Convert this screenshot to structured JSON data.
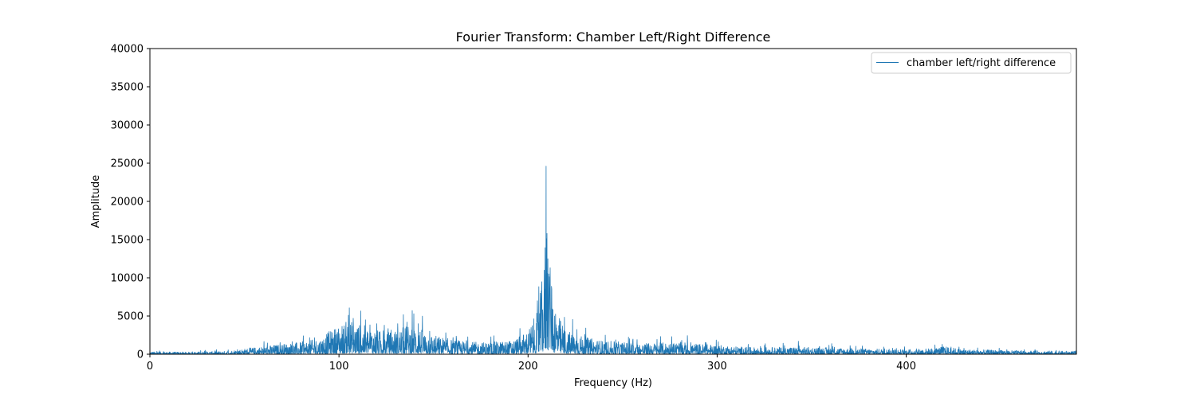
{
  "chart_data": {
    "type": "line",
    "title": "Fourier Transform: Chamber Left/Right Difference",
    "xlabel": "Frequency (Hz)",
    "ylabel": "Amplitude",
    "xlim": [
      0,
      490
    ],
    "ylim": [
      0,
      40000
    ],
    "x_ticks": [
      0,
      100,
      200,
      300,
      400
    ],
    "y_ticks": [
      0,
      5000,
      10000,
      15000,
      20000,
      25000,
      30000,
      35000,
      40000
    ],
    "grid": false,
    "legend_position": "top-right",
    "color": "#1f77b4",
    "series": [
      {
        "name": "chamber left/right difference",
        "envelope": [
          {
            "x": 0,
            "y": 200
          },
          {
            "x": 20,
            "y": 180
          },
          {
            "x": 40,
            "y": 250
          },
          {
            "x": 50,
            "y": 450
          },
          {
            "x": 60,
            "y": 650
          },
          {
            "x": 70,
            "y": 850
          },
          {
            "x": 80,
            "y": 1000
          },
          {
            "x": 90,
            "y": 1300
          },
          {
            "x": 95,
            "y": 1900
          },
          {
            "x": 100,
            "y": 2400
          },
          {
            "x": 105,
            "y": 2800
          },
          {
            "x": 110,
            "y": 2500
          },
          {
            "x": 115,
            "y": 2300
          },
          {
            "x": 120,
            "y": 2000
          },
          {
            "x": 125,
            "y": 1800
          },
          {
            "x": 130,
            "y": 2000
          },
          {
            "x": 135,
            "y": 2300
          },
          {
            "x": 140,
            "y": 2500
          },
          {
            "x": 145,
            "y": 1900
          },
          {
            "x": 150,
            "y": 1600
          },
          {
            "x": 160,
            "y": 1200
          },
          {
            "x": 170,
            "y": 1000
          },
          {
            "x": 180,
            "y": 1000
          },
          {
            "x": 190,
            "y": 1100
          },
          {
            "x": 195,
            "y": 1400
          },
          {
            "x": 200,
            "y": 2000
          },
          {
            "x": 205,
            "y": 3500
          },
          {
            "x": 207,
            "y": 5500
          },
          {
            "x": 209,
            "y": 10000
          },
          {
            "x": 210,
            "y": 13000
          },
          {
            "x": 211,
            "y": 8000
          },
          {
            "x": 213,
            "y": 5500
          },
          {
            "x": 216,
            "y": 3200
          },
          {
            "x": 220,
            "y": 2000
          },
          {
            "x": 230,
            "y": 1400
          },
          {
            "x": 240,
            "y": 1100
          },
          {
            "x": 260,
            "y": 900
          },
          {
            "x": 280,
            "y": 1000
          },
          {
            "x": 300,
            "y": 750
          },
          {
            "x": 320,
            "y": 550
          },
          {
            "x": 340,
            "y": 600
          },
          {
            "x": 360,
            "y": 550
          },
          {
            "x": 380,
            "y": 450
          },
          {
            "x": 400,
            "y": 400
          },
          {
            "x": 415,
            "y": 500
          },
          {
            "x": 420,
            "y": 650
          },
          {
            "x": 430,
            "y": 400
          },
          {
            "x": 460,
            "y": 300
          },
          {
            "x": 490,
            "y": 250
          }
        ],
        "peaks": [
          {
            "x": 105.0,
            "y": 5100
          },
          {
            "x": 107.5,
            "y": 4700
          },
          {
            "x": 114.0,
            "y": 4500
          },
          {
            "x": 120.0,
            "y": 4000
          },
          {
            "x": 131.0,
            "y": 4000
          },
          {
            "x": 136.0,
            "y": 4200
          },
          {
            "x": 139.5,
            "y": 5300
          },
          {
            "x": 142.0,
            "y": 4000
          },
          {
            "x": 148.0,
            "y": 3000
          },
          {
            "x": 205.0,
            "y": 7000
          },
          {
            "x": 207.0,
            "y": 8300
          },
          {
            "x": 208.5,
            "y": 11000
          },
          {
            "x": 209.5,
            "y": 24600
          },
          {
            "x": 210.0,
            "y": 15800
          },
          {
            "x": 210.5,
            "y": 12500
          },
          {
            "x": 211.0,
            "y": 10500
          },
          {
            "x": 211.5,
            "y": 8800
          },
          {
            "x": 212.5,
            "y": 8500
          },
          {
            "x": 214.0,
            "y": 5000
          },
          {
            "x": 276.0,
            "y": 2300
          },
          {
            "x": 343.0,
            "y": 1700
          },
          {
            "x": 419.0,
            "y": 1300
          }
        ]
      }
    ]
  }
}
